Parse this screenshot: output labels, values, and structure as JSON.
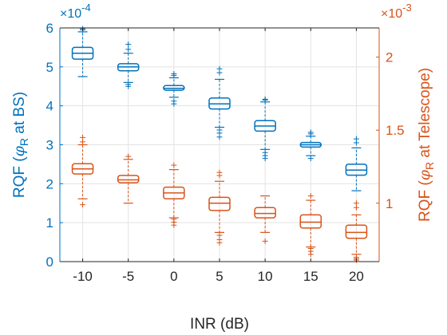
{
  "chart_data": {
    "type": "boxplot",
    "title": "",
    "xlabel": "INR (dB)",
    "categories": [
      "-10",
      "-5",
      "0",
      "5",
      "10",
      "15",
      "20"
    ],
    "left_axis": {
      "label_prefix": "RQF (",
      "label_phi": "φ",
      "label_sub": "R",
      "label_suffix": " at BS)",
      "exponent_base": "×10",
      "exponent_power": "-4",
      "ylim": [
        0,
        6
      ],
      "ticks": [
        "0",
        "1",
        "2",
        "3",
        "4",
        "5",
        "6"
      ],
      "color": "#0072BD"
    },
    "right_axis": {
      "label_prefix": "RQF (",
      "label_phi": "φ",
      "label_sub": "R",
      "label_suffix": " at Telescope)",
      "exponent_base": "×10",
      "exponent_power": "-3",
      "ylim": [
        0.6,
        2.2
      ],
      "ticks": [
        "1",
        "1.5",
        "2"
      ],
      "tick_values": [
        1,
        1.5,
        2
      ],
      "color": "#D95319"
    },
    "grid": true,
    "series": [
      {
        "axis": "left",
        "boxes": [
          {
            "min": 4.75,
            "q1": 5.2,
            "median": 5.35,
            "q3": 5.5,
            "max": 5.9,
            "outliers": [
              5.95,
              5.98
            ]
          },
          {
            "min": 4.6,
            "q1": 4.9,
            "median": 5.0,
            "q3": 5.08,
            "max": 5.35,
            "outliers": [
              4.5,
              4.55,
              5.45,
              5.58
            ]
          },
          {
            "min": 4.22,
            "q1": 4.4,
            "median": 4.45,
            "q3": 4.52,
            "max": 4.72,
            "outliers": [
              4.05,
              4.12,
              4.78,
              4.82
            ]
          },
          {
            "min": 3.45,
            "q1": 3.92,
            "median": 4.05,
            "q3": 4.2,
            "max": 4.68,
            "outliers": [
              3.2,
              3.3,
              3.38,
              4.85,
              4.95
            ]
          },
          {
            "min": 2.88,
            "q1": 3.35,
            "median": 3.48,
            "q3": 3.62,
            "max": 4.1,
            "outliers": [
              2.65,
              2.72,
              2.8,
              4.15,
              4.17
            ]
          },
          {
            "min": 2.72,
            "q1": 2.94,
            "median": 3.0,
            "q3": 3.06,
            "max": 3.22,
            "outliers": [
              2.65,
              3.28,
              3.32
            ]
          },
          {
            "min": 1.82,
            "q1": 2.22,
            "median": 2.35,
            "q3": 2.5,
            "max": 2.92,
            "outliers": [
              3.05,
              3.15
            ]
          }
        ]
      },
      {
        "axis": "right",
        "boxes": [
          {
            "min": 1.03,
            "q1": 1.2,
            "median": 1.235,
            "q3": 1.27,
            "max": 1.4,
            "outliers": [
              0.99,
              1.42,
              1.45
            ]
          },
          {
            "min": 1.0,
            "q1": 1.14,
            "median": 1.16,
            "q3": 1.19,
            "max": 1.3,
            "outliers": [
              1.32
            ]
          },
          {
            "min": 0.9,
            "q1": 1.03,
            "median": 1.07,
            "q3": 1.11,
            "max": 1.23,
            "outliers": [
              0.85,
              0.87,
              0.89,
              1.26
            ]
          },
          {
            "min": 0.8,
            "q1": 0.95,
            "median": 1.0,
            "q3": 1.04,
            "max": 1.15,
            "outliers": [
              0.73,
              0.75,
              0.78,
              1.19,
              1.21
            ]
          },
          {
            "min": 0.8,
            "q1": 0.9,
            "median": 0.93,
            "q3": 0.97,
            "max": 1.05,
            "outliers": [
              0.74
            ]
          },
          {
            "min": 0.7,
            "q1": 0.83,
            "median": 0.87,
            "q3": 0.92,
            "max": 1.02,
            "outliers": [
              0.65,
              0.67,
              0.69,
              1.05
            ]
          },
          {
            "min": 0.65,
            "q1": 0.76,
            "median": 0.8,
            "q3": 0.85,
            "max": 0.92,
            "outliers": [
              0.61,
              0.62,
              0.63,
              0.97,
              1.0
            ]
          }
        ]
      }
    ]
  }
}
